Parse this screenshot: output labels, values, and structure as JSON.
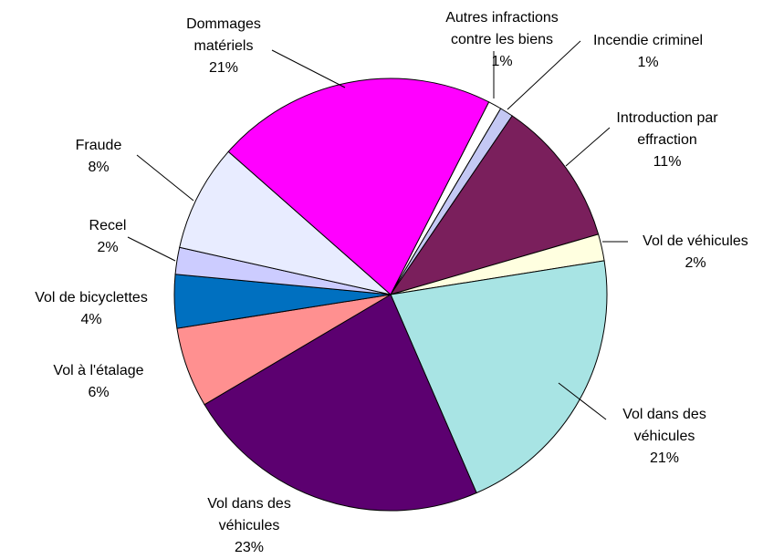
{
  "chart_data": {
    "type": "pie",
    "categories": [
      "Autres infractions contre les biens",
      "Incendie criminel",
      "Introduction par effraction",
      "Vol de véhicules",
      "Vol dans des véhicules",
      "Vol dans des véhicules",
      "Vol à l'étalage",
      "Vol de bicyclettes",
      "Recel",
      "Fraude",
      "Dommages matériels"
    ],
    "values": [
      1,
      1,
      11,
      2,
      21,
      23,
      6,
      4,
      2,
      8,
      21
    ],
    "value_labels": [
      "1%",
      "1%",
      "11%",
      "2%",
      "21%",
      "23%",
      "6%",
      "4%",
      "2%",
      "8%",
      "21%"
    ],
    "colors": [
      "#ffffff",
      "#c4c8f4",
      "#7a1f5c",
      "#ffffe0",
      "#a8e4e4",
      "#5c0070",
      "#ff9090",
      "#0070c0",
      "#ccccff",
      "#e8ecff",
      "#ff00ff"
    ]
  }
}
